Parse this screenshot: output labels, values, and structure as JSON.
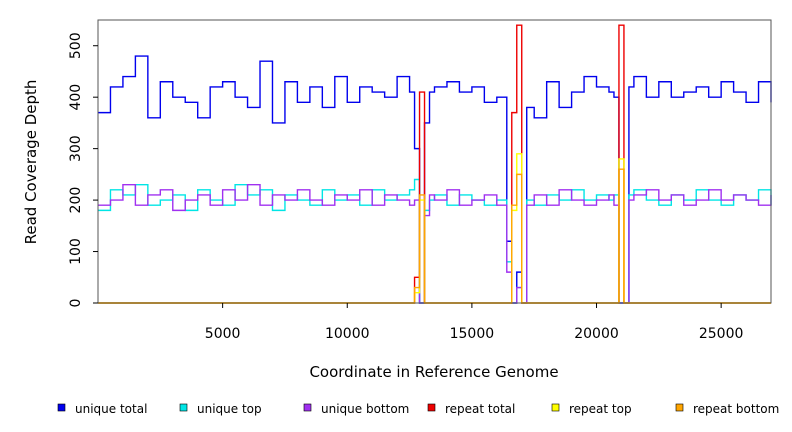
{
  "chart_data": {
    "type": "line",
    "title": "",
    "xlabel": "Coordinate in Reference Genome",
    "ylabel": "Read Coverage Depth",
    "xlim": [
      0,
      27000
    ],
    "ylim": [
      0,
      550
    ],
    "x_ticks": [
      5000,
      10000,
      15000,
      20000,
      25000
    ],
    "x_tick_labels": [
      "5000",
      "10000",
      "15000",
      "20000",
      "25000"
    ],
    "y_ticks": [
      0,
      100,
      200,
      300,
      400,
      500
    ],
    "y_tick_labels": [
      "0",
      "100",
      "200",
      "300",
      "400",
      "500"
    ],
    "x": [
      0,
      500,
      1000,
      1500,
      2000,
      2500,
      3000,
      3500,
      4000,
      4500,
      5000,
      5500,
      6000,
      6500,
      7000,
      7500,
      8000,
      8500,
      9000,
      9500,
      10000,
      10500,
      11000,
      11500,
      12000,
      12500,
      12700,
      12900,
      13100,
      13300,
      13500,
      14000,
      14500,
      15000,
      15500,
      16000,
      16400,
      16600,
      16800,
      17000,
      17200,
      17500,
      18000,
      18500,
      19000,
      19500,
      20000,
      20500,
      20700,
      20900,
      21100,
      21300,
      21500,
      22000,
      22500,
      23000,
      23500,
      24000,
      24500,
      25000,
      25500,
      26000,
      26500,
      27000
    ],
    "series": [
      {
        "name": "unique total",
        "color": "#0000ee",
        "values": [
          370,
          420,
          440,
          480,
          360,
          430,
          400,
          390,
          360,
          420,
          430,
          400,
          380,
          470,
          350,
          430,
          390,
          420,
          380,
          440,
          390,
          420,
          410,
          400,
          440,
          410,
          300,
          0,
          350,
          410,
          420,
          430,
          410,
          420,
          390,
          400,
          120,
          0,
          60,
          0,
          380,
          360,
          430,
          380,
          410,
          440,
          420,
          410,
          400,
          0,
          0,
          420,
          440,
          400,
          430,
          400,
          410,
          420,
          400,
          430,
          410,
          390,
          430,
          390
        ]
      },
      {
        "name": "unique top",
        "color": "#00e5e5",
        "values": [
          180,
          220,
          210,
          230,
          190,
          200,
          210,
          180,
          220,
          200,
          190,
          230,
          210,
          220,
          180,
          210,
          200,
          190,
          220,
          200,
          210,
          190,
          220,
          200,
          210,
          220,
          240,
          0,
          180,
          200,
          210,
          190,
          210,
          200,
          190,
          200,
          80,
          0,
          30,
          0,
          200,
          190,
          210,
          200,
          220,
          200,
          210,
          200,
          210,
          0,
          0,
          210,
          220,
          200,
          190,
          210,
          200,
          220,
          200,
          190,
          210,
          200,
          220,
          190
        ]
      },
      {
        "name": "unique bottom",
        "color": "#a030f0",
        "values": [
          190,
          200,
          230,
          190,
          210,
          220,
          180,
          200,
          210,
          190,
          220,
          200,
          230,
          190,
          210,
          200,
          220,
          200,
          190,
          210,
          200,
          220,
          190,
          210,
          200,
          190,
          200,
          0,
          170,
          210,
          200,
          220,
          190,
          200,
          210,
          190,
          60,
          0,
          30,
          0,
          190,
          210,
          190,
          220,
          200,
          190,
          200,
          210,
          190,
          0,
          0,
          200,
          210,
          220,
          200,
          210,
          190,
          200,
          220,
          200,
          210,
          200,
          190,
          210
        ]
      },
      {
        "name": "repeat total",
        "color": "#ee0000",
        "values": [
          0,
          0,
          0,
          0,
          0,
          0,
          0,
          0,
          0,
          0,
          0,
          0,
          0,
          0,
          0,
          0,
          0,
          0,
          0,
          0,
          0,
          0,
          0,
          0,
          0,
          0,
          50,
          410,
          0,
          0,
          0,
          0,
          0,
          0,
          0,
          0,
          0,
          370,
          540,
          0,
          0,
          0,
          0,
          0,
          0,
          0,
          0,
          0,
          0,
          540,
          0,
          0,
          0,
          0,
          0,
          0,
          0,
          0,
          0,
          0,
          0,
          0,
          0,
          0
        ]
      },
      {
        "name": "repeat top",
        "color": "#ffff00",
        "values": [
          0,
          0,
          0,
          0,
          0,
          0,
          0,
          0,
          0,
          0,
          0,
          0,
          0,
          0,
          0,
          0,
          0,
          0,
          0,
          0,
          0,
          0,
          0,
          0,
          0,
          0,
          20,
          200,
          0,
          0,
          0,
          0,
          0,
          0,
          0,
          0,
          0,
          180,
          290,
          0,
          0,
          0,
          0,
          0,
          0,
          0,
          0,
          0,
          0,
          280,
          0,
          0,
          0,
          0,
          0,
          0,
          0,
          0,
          0,
          0,
          0,
          0,
          0,
          0
        ]
      },
      {
        "name": "repeat bottom",
        "color": "#ffa500",
        "values": [
          0,
          0,
          0,
          0,
          0,
          0,
          0,
          0,
          0,
          0,
          0,
          0,
          0,
          0,
          0,
          0,
          0,
          0,
          0,
          0,
          0,
          0,
          0,
          0,
          0,
          0,
          30,
          210,
          0,
          0,
          0,
          0,
          0,
          0,
          0,
          0,
          0,
          190,
          250,
          0,
          0,
          0,
          0,
          0,
          0,
          0,
          0,
          0,
          0,
          260,
          0,
          0,
          0,
          0,
          0,
          0,
          0,
          0,
          0,
          0,
          0,
          0,
          0,
          0
        ]
      }
    ],
    "legend": [
      "unique total",
      "unique top",
      "unique bottom",
      "repeat total",
      "repeat top",
      "repeat bottom"
    ],
    "legend_position": "bottom",
    "grid": false
  }
}
